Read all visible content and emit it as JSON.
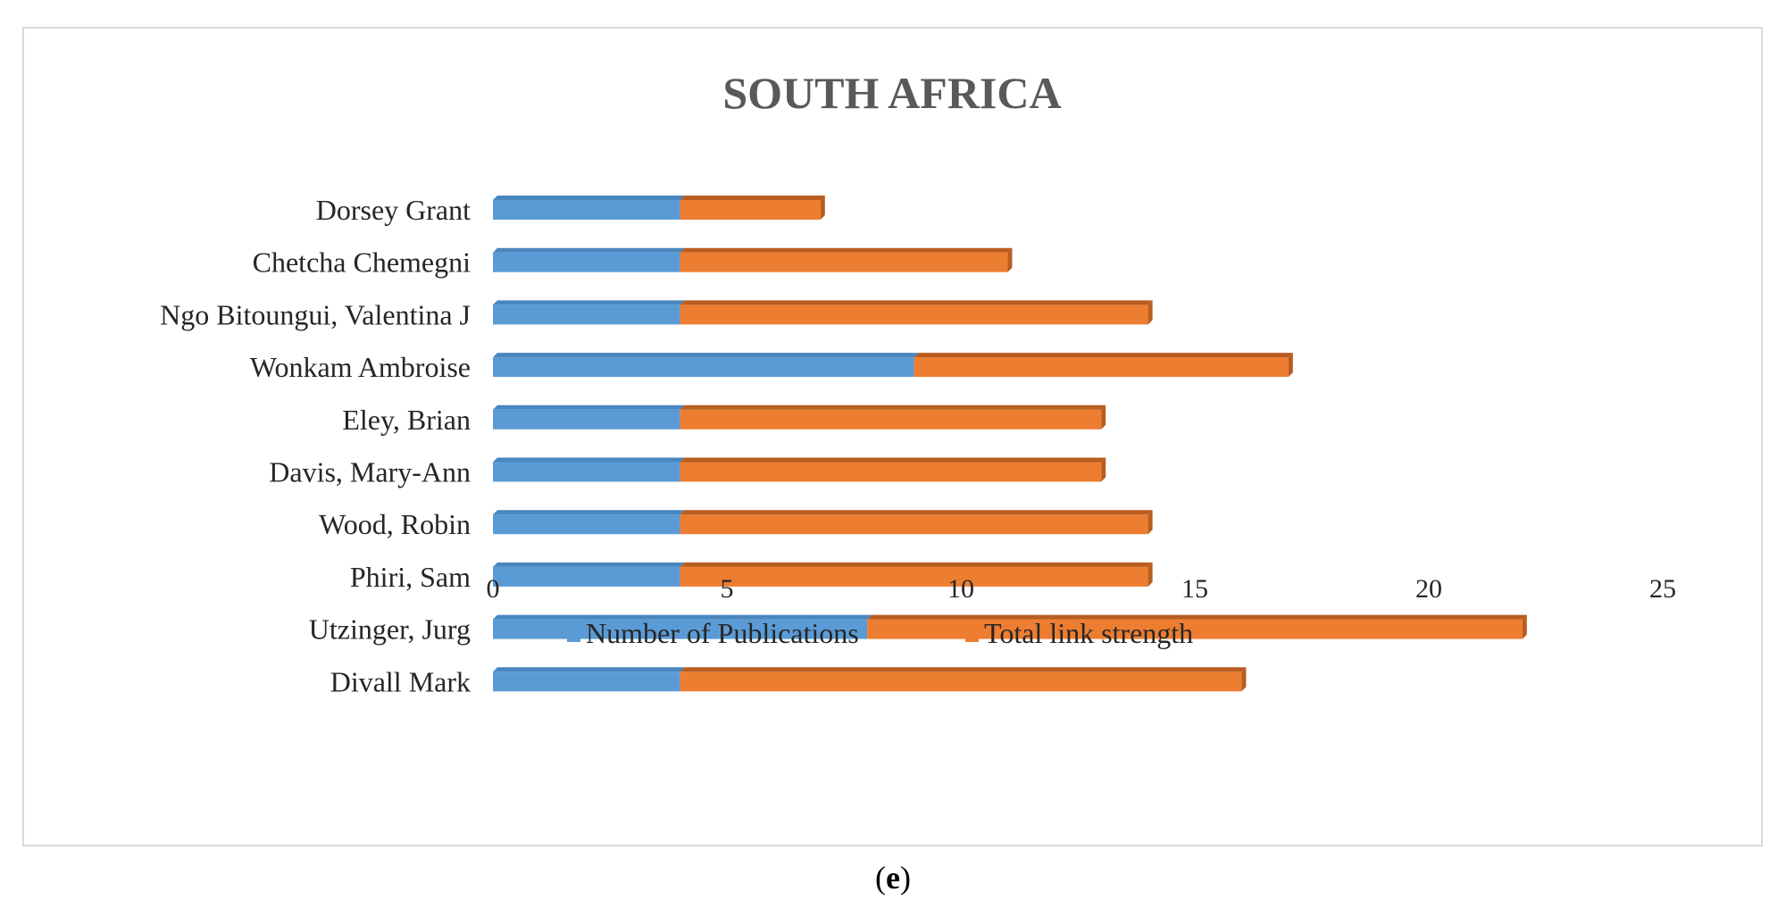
{
  "panel_label": {
    "open": "(",
    "letter": "e",
    "close": ")"
  },
  "colors": {
    "series_1": "#5b9bd5",
    "series_1_shade": "#4a86bf",
    "series_2": "#ed7d31",
    "series_2_shade": "#b85d1f",
    "title": "#595959",
    "text": "#262626",
    "frame": "#d9d9d9"
  },
  "chart_data": {
    "type": "bar",
    "orientation": "horizontal",
    "stacked": true,
    "title": "SOUTH AFRICA",
    "categories": [
      "Dorsey Grant",
      "Chetcha Chemegni",
      "Ngo Bitoungui, Valentina J",
      "Wonkam Ambroise",
      "Eley, Brian",
      "Davis, Mary-Ann",
      "Wood, Robin",
      "Phiri, Sam",
      "Utzinger, Jurg",
      "Divall Mark"
    ],
    "series": [
      {
        "name": "Number of Publications",
        "values": [
          4,
          4,
          4,
          9,
          4,
          4,
          4,
          4,
          8,
          4
        ]
      },
      {
        "name": "Total link strength",
        "values": [
          3,
          7,
          10,
          8,
          9,
          9,
          10,
          10,
          14,
          12
        ]
      }
    ],
    "xlim": [
      0,
      25
    ],
    "xticks": [
      0,
      5,
      10,
      15,
      20,
      25
    ],
    "grid": false,
    "legend": "bottom"
  }
}
